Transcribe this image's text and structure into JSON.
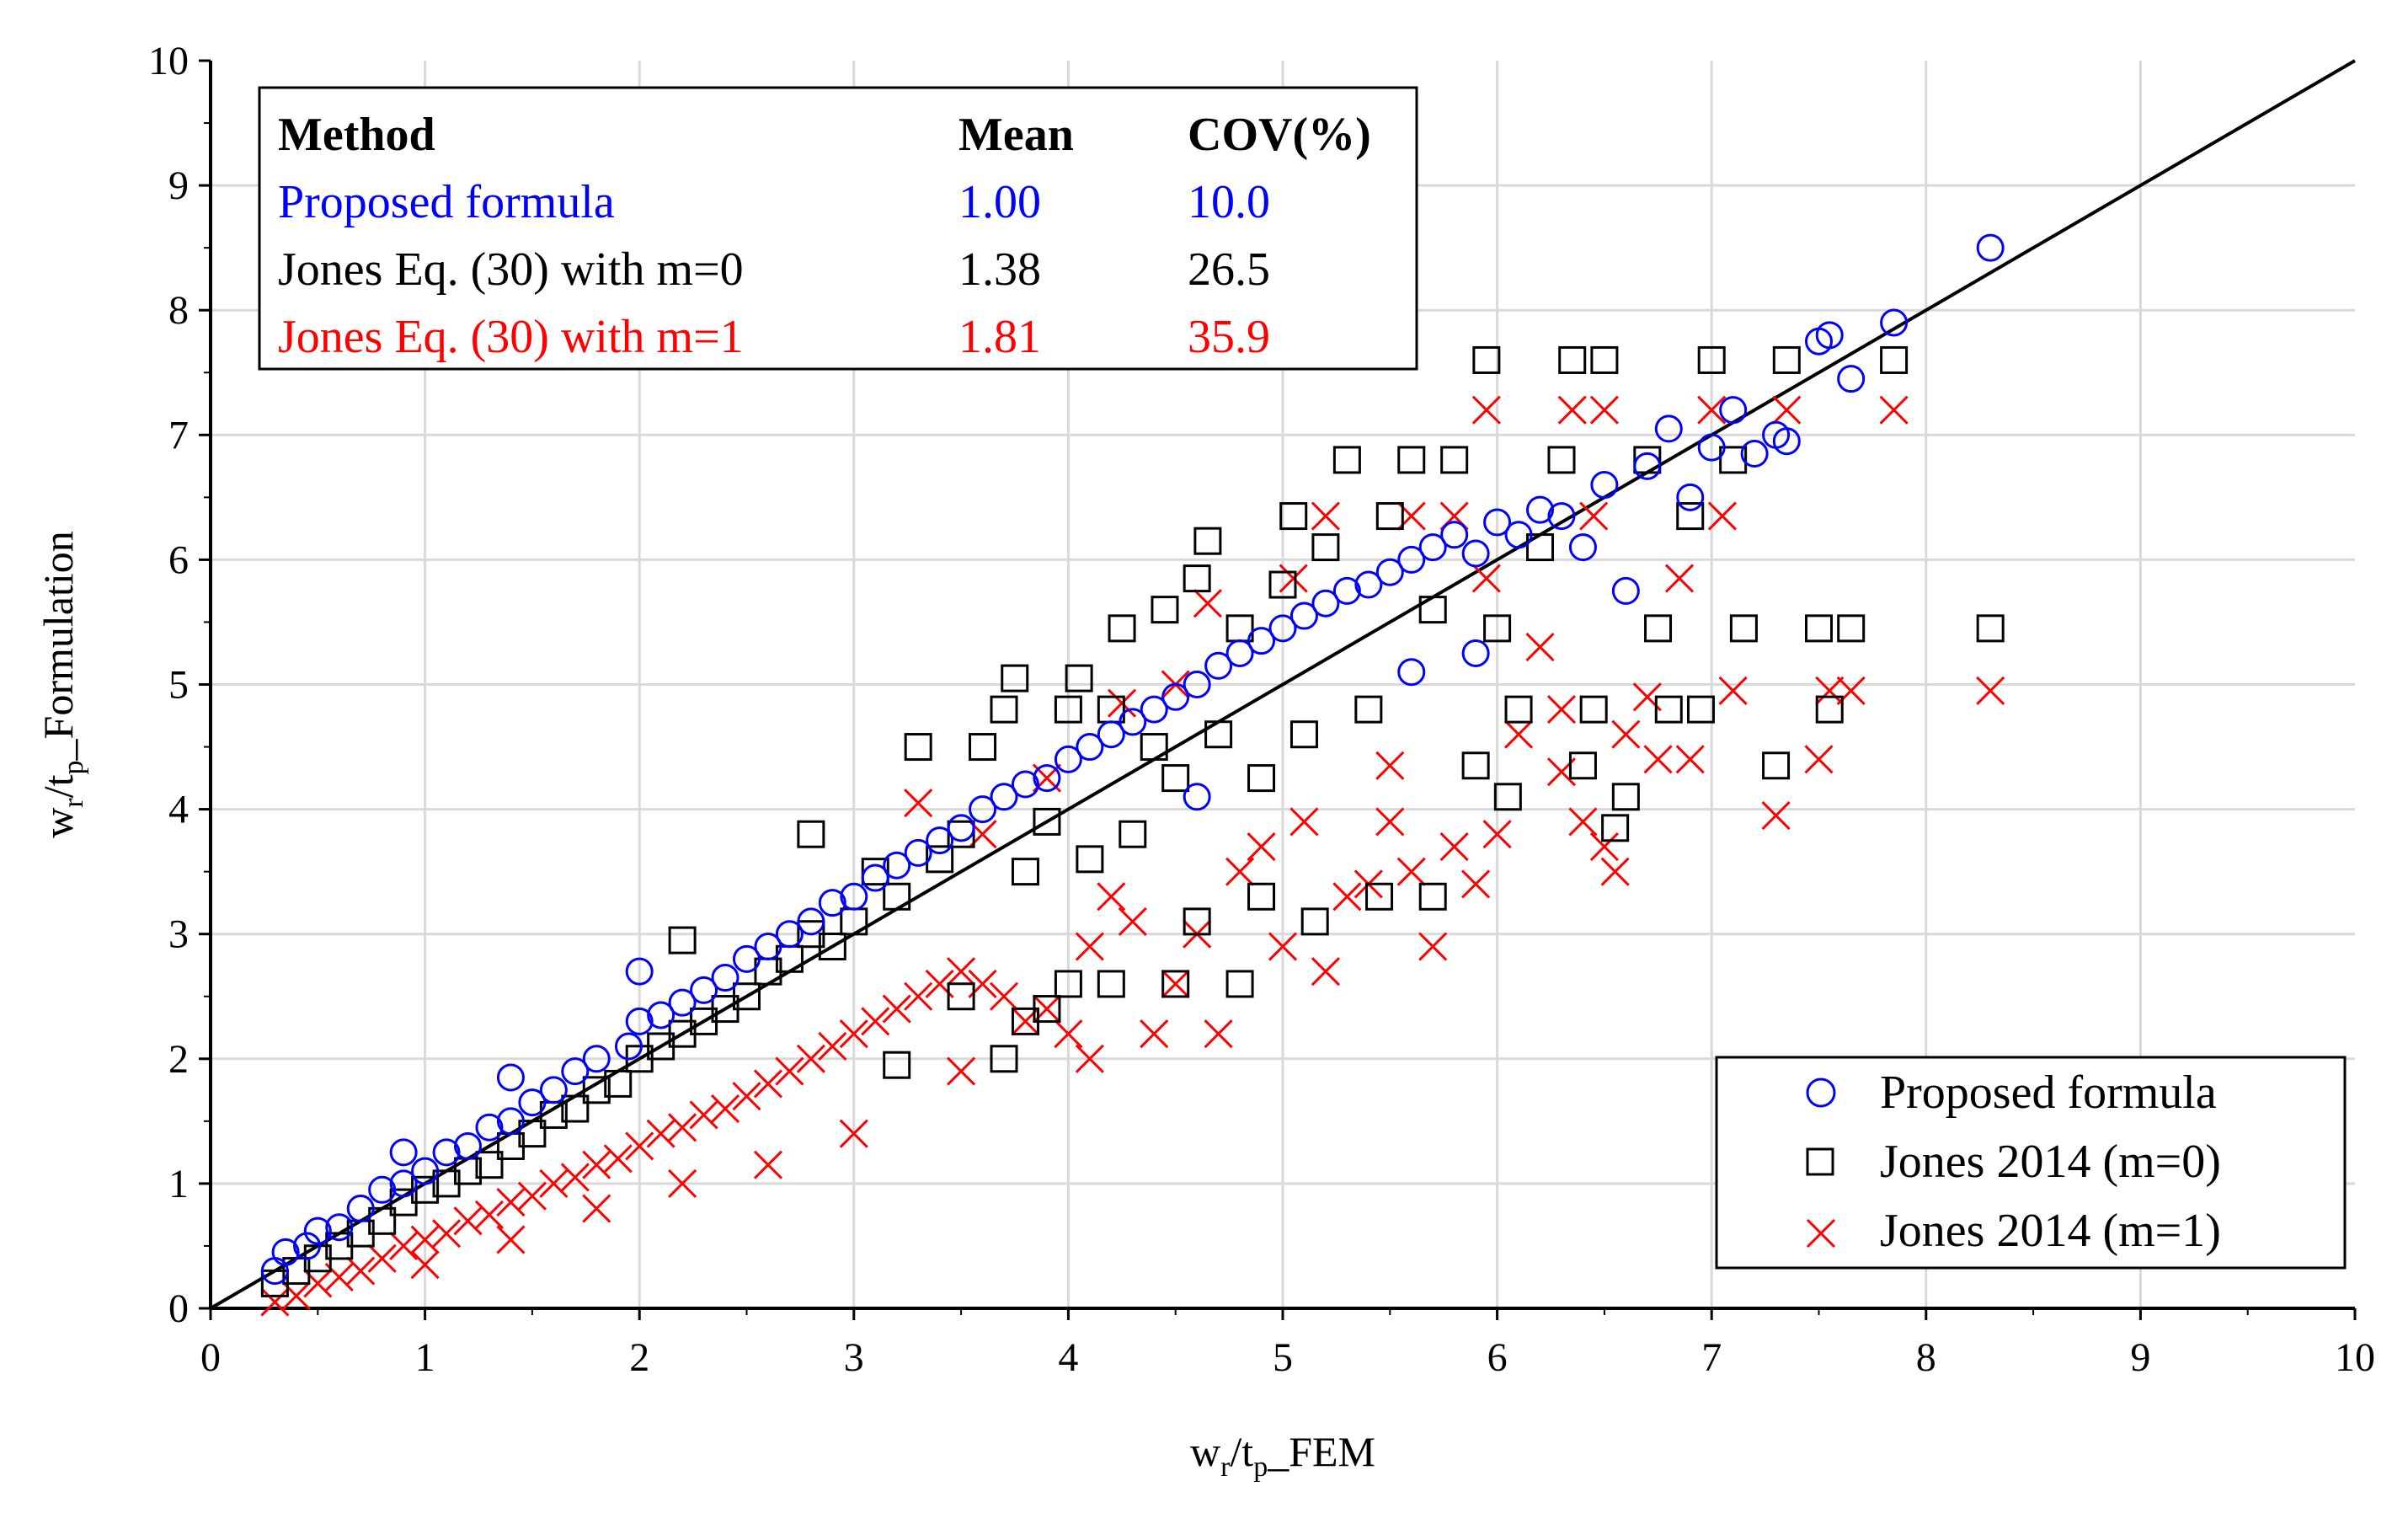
{
  "chart_data": {
    "type": "scatter",
    "title": "",
    "xlabel": {
      "main": "w",
      "sub1": "r",
      "mid": "/t",
      "sub2": "p",
      "tail": "_FEM"
    },
    "ylabel": {
      "main": "w",
      "sub1": "r",
      "mid": "/t",
      "sub2": "p",
      "tail": "_Formulation"
    },
    "xlim": [
      0,
      10
    ],
    "ylim": [
      0,
      10
    ],
    "xticks": [
      "0",
      "1",
      "2",
      "3",
      "4",
      "5",
      "6",
      "7",
      "8",
      "9",
      "10"
    ],
    "yticks": [
      "0",
      "1",
      "2",
      "3",
      "4",
      "5",
      "6",
      "7",
      "8",
      "9",
      "10"
    ],
    "grid": true,
    "reference_line": {
      "x": [
        0,
        10
      ],
      "y": [
        0,
        10
      ],
      "color": "#000000"
    },
    "stats_table": {
      "headers": [
        "Method",
        "Mean",
        "COV(%)"
      ],
      "rows": [
        {
          "method": "Proposed formula",
          "mean": "1.00",
          "cov": "10.0",
          "color": "#0000ff"
        },
        {
          "method": "Jones Eq. (30) with m=0",
          "mean": "1.38",
          "cov": "26.5",
          "color": "#000000"
        },
        {
          "method": "Jones Eq. (30) with m=1",
          "mean": "1.81",
          "cov": "35.9",
          "color": "#ff0000"
        }
      ]
    },
    "legend": {
      "position": "bottom-right",
      "entries": [
        {
          "label": "Proposed formula",
          "marker": "circle",
          "color": "#0000ff"
        },
        {
          "label": "Jones 2014 (m=0)",
          "marker": "square",
          "color": "#000000"
        },
        {
          "label": "Jones 2014 (m=1)",
          "marker": "x",
          "color": "#ff0000"
        }
      ]
    },
    "series": [
      {
        "name": "Proposed formula",
        "marker": "circle",
        "color": "#0000ff",
        "points": [
          [
            0.3,
            0.3
          ],
          [
            0.35,
            0.45
          ],
          [
            0.45,
            0.5
          ],
          [
            0.5,
            0.62
          ],
          [
            0.6,
            0.65
          ],
          [
            0.7,
            0.8
          ],
          [
            0.8,
            0.95
          ],
          [
            0.9,
            1.0
          ],
          [
            1.0,
            1.1
          ],
          [
            1.1,
            1.25
          ],
          [
            1.2,
            1.3
          ],
          [
            1.3,
            1.45
          ],
          [
            1.4,
            1.5
          ],
          [
            1.5,
            1.65
          ],
          [
            1.6,
            1.75
          ],
          [
            1.7,
            1.9
          ],
          [
            1.8,
            2.0
          ],
          [
            1.95,
            2.1
          ],
          [
            2.0,
            2.3
          ],
          [
            2.1,
            2.35
          ],
          [
            2.2,
            2.45
          ],
          [
            2.3,
            2.55
          ],
          [
            2.4,
            2.65
          ],
          [
            2.5,
            2.8
          ],
          [
            2.6,
            2.9
          ],
          [
            2.7,
            3.0
          ],
          [
            2.8,
            3.1
          ],
          [
            2.9,
            3.25
          ],
          [
            3.0,
            3.3
          ],
          [
            3.1,
            3.45
          ],
          [
            3.2,
            3.55
          ],
          [
            3.3,
            3.65
          ],
          [
            3.4,
            3.75
          ],
          [
            3.5,
            3.85
          ],
          [
            3.6,
            4.0
          ],
          [
            3.7,
            4.1
          ],
          [
            3.8,
            4.2
          ],
          [
            3.9,
            4.25
          ],
          [
            4.0,
            4.4
          ],
          [
            4.1,
            4.5
          ],
          [
            4.2,
            4.6
          ],
          [
            4.3,
            4.7
          ],
          [
            4.4,
            4.8
          ],
          [
            4.5,
            4.9
          ],
          [
            4.6,
            5.0
          ],
          [
            4.7,
            5.15
          ],
          [
            4.8,
            5.25
          ],
          [
            4.9,
            5.35
          ],
          [
            5.0,
            5.45
          ],
          [
            5.1,
            5.55
          ],
          [
            5.2,
            5.65
          ],
          [
            5.3,
            5.75
          ],
          [
            5.4,
            5.8
          ],
          [
            5.5,
            5.9
          ],
          [
            5.6,
            6.0
          ],
          [
            5.7,
            6.1
          ],
          [
            5.8,
            6.2
          ],
          [
            5.9,
            6.05
          ],
          [
            6.0,
            6.3
          ],
          [
            6.1,
            6.2
          ],
          [
            6.2,
            6.4
          ],
          [
            6.3,
            6.35
          ],
          [
            6.4,
            6.1
          ],
          [
            6.5,
            6.6
          ],
          [
            6.6,
            5.75
          ],
          [
            6.7,
            6.75
          ],
          [
            6.8,
            7.05
          ],
          [
            6.9,
            6.5
          ],
          [
            7.0,
            6.9
          ],
          [
            7.1,
            7.2
          ],
          [
            7.2,
            6.85
          ],
          [
            7.3,
            7.0
          ],
          [
            7.35,
            6.95
          ],
          [
            7.5,
            7.75
          ],
          [
            7.55,
            7.8
          ],
          [
            7.65,
            7.45
          ],
          [
            7.85,
            7.9
          ],
          [
            8.3,
            8.5
          ],
          [
            2.0,
            2.7
          ],
          [
            1.4,
            1.85
          ],
          [
            0.9,
            1.25
          ],
          [
            5.9,
            5.25
          ],
          [
            5.6,
            5.1
          ],
          [
            4.6,
            4.1
          ]
        ]
      },
      {
        "name": "Jones 2014 (m=0)",
        "marker": "square",
        "color": "#000000",
        "points": [
          [
            0.3,
            0.2
          ],
          [
            0.4,
            0.3
          ],
          [
            0.5,
            0.4
          ],
          [
            0.6,
            0.5
          ],
          [
            0.7,
            0.6
          ],
          [
            0.8,
            0.7
          ],
          [
            0.9,
            0.85
          ],
          [
            1.0,
            0.95
          ],
          [
            1.1,
            1.0
          ],
          [
            1.2,
            1.1
          ],
          [
            1.3,
            1.15
          ],
          [
            1.4,
            1.3
          ],
          [
            1.5,
            1.4
          ],
          [
            1.6,
            1.55
          ],
          [
            1.7,
            1.6
          ],
          [
            1.8,
            1.75
          ],
          [
            1.9,
            1.8
          ],
          [
            2.0,
            2.0
          ],
          [
            2.1,
            2.1
          ],
          [
            2.2,
            2.2
          ],
          [
            2.3,
            2.3
          ],
          [
            2.2,
            2.95
          ],
          [
            2.4,
            2.4
          ],
          [
            2.5,
            2.5
          ],
          [
            2.6,
            2.7
          ],
          [
            2.7,
            2.8
          ],
          [
            2.8,
            3.0
          ],
          [
            2.9,
            2.9
          ],
          [
            2.8,
            3.8
          ],
          [
            3.0,
            3.1
          ],
          [
            3.1,
            3.5
          ],
          [
            3.2,
            3.3
          ],
          [
            3.3,
            4.5
          ],
          [
            3.4,
            3.6
          ],
          [
            3.5,
            3.8
          ],
          [
            3.6,
            4.5
          ],
          [
            3.7,
            4.8
          ],
          [
            3.75,
            5.05
          ],
          [
            3.8,
            3.5
          ],
          [
            3.9,
            3.9
          ],
          [
            4.0,
            4.8
          ],
          [
            4.05,
            5.05
          ],
          [
            4.1,
            3.6
          ],
          [
            4.2,
            4.8
          ],
          [
            4.25,
            5.45
          ],
          [
            4.3,
            3.8
          ],
          [
            4.4,
            4.5
          ],
          [
            4.45,
            5.6
          ],
          [
            4.5,
            4.25
          ],
          [
            4.6,
            5.85
          ],
          [
            4.65,
            6.15
          ],
          [
            4.7,
            4.6
          ],
          [
            4.8,
            5.45
          ],
          [
            4.9,
            4.25
          ],
          [
            5.0,
            5.8
          ],
          [
            5.05,
            6.35
          ],
          [
            5.1,
            4.6
          ],
          [
            5.2,
            6.1
          ],
          [
            5.3,
            6.8
          ],
          [
            5.4,
            4.8
          ],
          [
            5.5,
            6.35
          ],
          [
            5.6,
            6.8
          ],
          [
            5.7,
            5.6
          ],
          [
            5.8,
            6.8
          ],
          [
            5.9,
            4.35
          ],
          [
            5.95,
            7.6
          ],
          [
            6.0,
            5.45
          ],
          [
            6.05,
            4.1
          ],
          [
            6.1,
            4.8
          ],
          [
            6.2,
            6.1
          ],
          [
            6.3,
            6.8
          ],
          [
            6.35,
            7.6
          ],
          [
            6.4,
            4.35
          ],
          [
            6.45,
            4.8
          ],
          [
            6.5,
            7.6
          ],
          [
            6.55,
            3.85
          ],
          [
            6.6,
            4.1
          ],
          [
            6.7,
            6.8
          ],
          [
            6.75,
            5.45
          ],
          [
            6.8,
            4.8
          ],
          [
            6.9,
            6.35
          ],
          [
            6.95,
            4.8
          ],
          [
            7.0,
            7.6
          ],
          [
            7.1,
            6.8
          ],
          [
            7.15,
            5.45
          ],
          [
            7.3,
            4.35
          ],
          [
            7.35,
            7.6
          ],
          [
            7.5,
            5.45
          ],
          [
            7.55,
            4.8
          ],
          [
            7.65,
            5.45
          ],
          [
            7.85,
            7.6
          ],
          [
            8.3,
            5.45
          ],
          [
            5.45,
            3.3
          ],
          [
            5.7,
            3.3
          ],
          [
            4.9,
            3.3
          ],
          [
            4.0,
            2.6
          ],
          [
            3.8,
            2.3
          ],
          [
            4.8,
            2.6
          ],
          [
            4.5,
            2.6
          ],
          [
            4.6,
            3.1
          ],
          [
            5.15,
            3.1
          ],
          [
            4.2,
            2.6
          ],
          [
            3.5,
            2.5
          ],
          [
            3.7,
            2.0
          ],
          [
            3.9,
            2.4
          ],
          [
            3.2,
            1.95
          ]
        ]
      },
      {
        "name": "Jones 2014 (m=1)",
        "marker": "x",
        "color": "#ff0000",
        "points": [
          [
            0.3,
            0.05
          ],
          [
            0.4,
            0.1
          ],
          [
            0.5,
            0.2
          ],
          [
            0.6,
            0.25
          ],
          [
            0.7,
            0.3
          ],
          [
            0.8,
            0.4
          ],
          [
            0.9,
            0.5
          ],
          [
            1.0,
            0.55
          ],
          [
            1.1,
            0.6
          ],
          [
            1.2,
            0.7
          ],
          [
            1.3,
            0.75
          ],
          [
            1.4,
            0.85
          ],
          [
            1.5,
            0.9
          ],
          [
            1.6,
            1.0
          ],
          [
            1.7,
            1.05
          ],
          [
            1.8,
            1.15
          ],
          [
            1.9,
            1.2
          ],
          [
            2.0,
            1.3
          ],
          [
            2.1,
            1.4
          ],
          [
            2.2,
            1.45
          ],
          [
            2.3,
            1.55
          ],
          [
            2.4,
            1.6
          ],
          [
            2.5,
            1.7
          ],
          [
            2.6,
            1.8
          ],
          [
            2.7,
            1.9
          ],
          [
            2.8,
            2.0
          ],
          [
            2.9,
            2.1
          ],
          [
            3.0,
            2.2
          ],
          [
            3.1,
            2.3
          ],
          [
            3.2,
            2.4
          ],
          [
            3.3,
            2.5
          ],
          [
            3.4,
            2.6
          ],
          [
            3.5,
            2.7
          ],
          [
            3.6,
            2.6
          ],
          [
            3.7,
            2.5
          ],
          [
            3.8,
            2.3
          ],
          [
            3.9,
            2.4
          ],
          [
            4.0,
            2.2
          ],
          [
            4.1,
            2.9
          ],
          [
            4.2,
            3.3
          ],
          [
            4.3,
            3.1
          ],
          [
            4.4,
            2.2
          ],
          [
            4.5,
            2.6
          ],
          [
            4.6,
            3.0
          ],
          [
            4.7,
            2.2
          ],
          [
            4.8,
            3.5
          ],
          [
            4.9,
            3.7
          ],
          [
            5.0,
            2.9
          ],
          [
            5.1,
            3.9
          ],
          [
            5.2,
            2.7
          ],
          [
            5.3,
            3.3
          ],
          [
            5.4,
            3.4
          ],
          [
            5.5,
            3.9
          ],
          [
            5.6,
            3.5
          ],
          [
            5.7,
            2.9
          ],
          [
            5.8,
            3.7
          ],
          [
            5.9,
            3.4
          ],
          [
            6.0,
            3.8
          ],
          [
            6.1,
            4.6
          ],
          [
            6.2,
            5.3
          ],
          [
            6.3,
            4.3
          ],
          [
            6.4,
            3.9
          ],
          [
            6.5,
            3.7
          ],
          [
            6.55,
            3.5
          ],
          [
            6.6,
            4.6
          ],
          [
            6.7,
            4.9
          ],
          [
            6.75,
            4.4
          ],
          [
            6.85,
            5.85
          ],
          [
            6.9,
            4.4
          ],
          [
            7.05,
            6.35
          ],
          [
            7.1,
            4.95
          ],
          [
            7.3,
            3.95
          ],
          [
            7.5,
            4.4
          ],
          [
            7.55,
            4.95
          ],
          [
            7.65,
            4.95
          ],
          [
            5.95,
            7.2
          ],
          [
            6.35,
            7.2
          ],
          [
            6.5,
            7.2
          ],
          [
            7.0,
            7.2
          ],
          [
            7.35,
            7.2
          ],
          [
            7.85,
            7.2
          ],
          [
            8.3,
            4.95
          ],
          [
            3.3,
            4.05
          ],
          [
            3.6,
            3.8
          ],
          [
            3.9,
            4.25
          ],
          [
            4.25,
            4.85
          ],
          [
            4.5,
            5.0
          ],
          [
            4.65,
            5.65
          ],
          [
            5.05,
            5.85
          ],
          [
            5.2,
            6.35
          ],
          [
            5.6,
            6.35
          ],
          [
            5.8,
            6.35
          ],
          [
            6.45,
            6.35
          ],
          [
            5.5,
            4.35
          ],
          [
            5.95,
            5.85
          ],
          [
            6.3,
            4.8
          ],
          [
            4.1,
            2.0
          ],
          [
            3.5,
            1.9
          ],
          [
            3.0,
            1.4
          ],
          [
            2.6,
            1.15
          ],
          [
            2.2,
            1.0
          ],
          [
            1.8,
            0.8
          ],
          [
            1.4,
            0.55
          ],
          [
            1.0,
            0.35
          ]
        ]
      }
    ]
  }
}
